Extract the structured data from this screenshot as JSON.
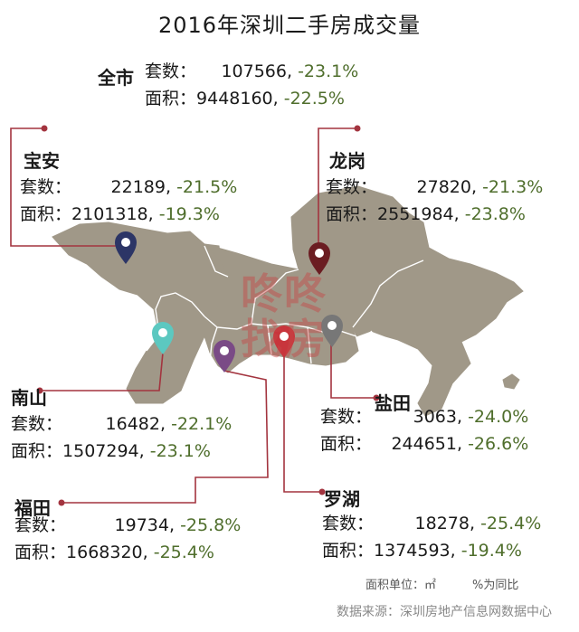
{
  "title": "2016年深圳二手房成交量",
  "watermark": {
    "line1": "咚咚",
    "line2": "找房"
  },
  "colors": {
    "map_fill": "#a09888",
    "district_border": "#ffffff",
    "leader_line": "#a3343f",
    "pct_text": "#4f6e2c",
    "watermark": "#c84848",
    "pin_baoan": "#2c3566",
    "pin_longgang": "#6b1d22",
    "pin_nanshan": "#5cc8c0",
    "pin_futian": "#7a4a86",
    "pin_luohu": "#c8353c",
    "pin_yantian": "#777777"
  },
  "labels": {
    "count": "套数：",
    "area": "面积："
  },
  "total": {
    "name": "全市",
    "count_label": "套数：",
    "count": "107566,",
    "count_pct": "-23.1%",
    "area_label": "面积：",
    "area": "9448160,",
    "area_pct": "-22.5%"
  },
  "districts": {
    "baoan": {
      "name": "宝安",
      "count": "22189,",
      "count_pct": "-21.5%",
      "area": "2101318,",
      "area_pct": "-19.3%",
      "icon": "map-pin-icon"
    },
    "longgang": {
      "name": "龙岗",
      "count": "27820,",
      "count_pct": "-21.3%",
      "area": "2551984,",
      "area_pct": "-23.8%",
      "icon": "map-pin-icon"
    },
    "nanshan": {
      "name": "南山",
      "count": "16482,",
      "count_pct": "-22.1%",
      "area": "1507294,",
      "area_pct": "-23.1%",
      "icon": "map-pin-icon"
    },
    "yantian": {
      "name": "盐田",
      "count": "3063,",
      "count_pct": "-24.0%",
      "area": "244651,",
      "area_pct": "-26.6%",
      "icon": "map-pin-icon"
    },
    "futian": {
      "name": "福田",
      "count": "19734,",
      "count_pct": "-25.8%",
      "area": "1668320,",
      "area_pct": "-25.4%",
      "icon": "map-pin-icon"
    },
    "luohu": {
      "name": "罗湖",
      "count": "18278,",
      "count_pct": "-25.4%",
      "area": "1374593,",
      "area_pct": "-19.4%",
      "icon": "map-pin-icon"
    }
  },
  "footer": {
    "unit_note": "面积单位：㎡",
    "pct_note": "%为同比",
    "source": "数据来源：深圳房地产信息网数据中心"
  }
}
